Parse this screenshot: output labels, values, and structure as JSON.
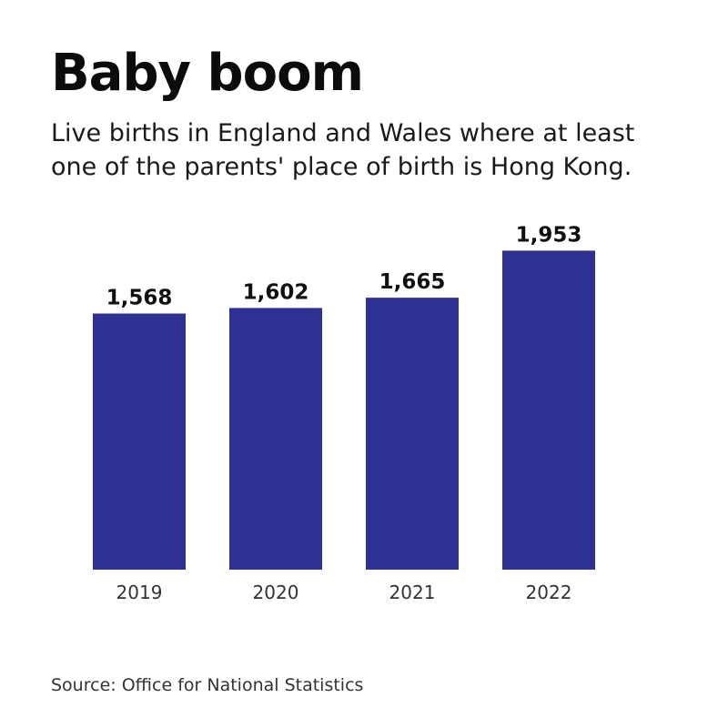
{
  "header": {
    "title": "Baby boom",
    "subtitle": "Live births in England and Wales where at least one of the parents' place of birth is Hong Kong."
  },
  "footer": {
    "source": "Source: Office for National Statistics"
  },
  "chart_data": {
    "type": "bar",
    "categories": [
      "2019",
      "2020",
      "2021",
      "2022"
    ],
    "values": [
      1568,
      1602,
      1665,
      1953
    ],
    "value_labels": [
      "1,568",
      "1,602",
      "1,665",
      "1,953"
    ],
    "title": "Baby boom",
    "subtitle": "Live births in England and Wales where at least one of the parents' place of birth is Hong Kong.",
    "xlabel": "",
    "ylabel": "",
    "grid": false,
    "bar_color": "#2e3192"
  }
}
